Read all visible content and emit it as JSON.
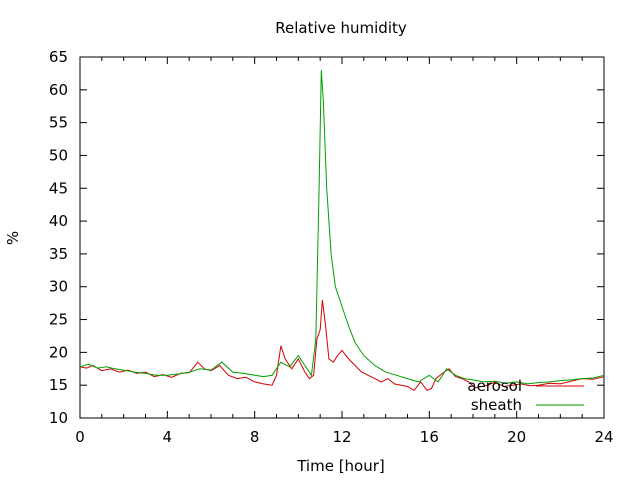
{
  "chart_data": {
    "type": "line",
    "title": "Relative humidity",
    "xlabel": "Time [hour]",
    "ylabel": "%",
    "xlim": [
      0,
      24
    ],
    "ylim": [
      10,
      65
    ],
    "xticks": [
      0,
      4,
      8,
      12,
      16,
      20,
      24
    ],
    "yticks": [
      10,
      15,
      20,
      25,
      30,
      35,
      40,
      45,
      50,
      55,
      60,
      65
    ],
    "grid": false,
    "legend_position": "bottom-right",
    "series": [
      {
        "name": "aerosol",
        "color": "#d40000",
        "x": [
          0,
          0.3,
          0.6,
          1.0,
          1.4,
          1.8,
          2.2,
          2.6,
          3.0,
          3.4,
          3.8,
          4.2,
          4.6,
          5.0,
          5.4,
          5.7,
          6.0,
          6.4,
          6.8,
          7.2,
          7.6,
          8.0,
          8.4,
          8.8,
          9.0,
          9.2,
          9.4,
          9.7,
          10.0,
          10.3,
          10.5,
          10.7,
          10.85,
          11.0,
          11.1,
          11.25,
          11.4,
          11.6,
          11.8,
          12.0,
          12.3,
          12.6,
          12.9,
          13.2,
          13.5,
          13.8,
          14.1,
          14.4,
          14.7,
          15.0,
          15.3,
          15.6,
          15.9,
          16.1,
          16.3,
          16.6,
          16.9,
          17.2,
          17.5,
          17.8,
          18.1,
          18.4,
          18.7,
          19.0,
          19.4,
          19.8,
          20.2,
          20.6,
          21.0,
          21.5,
          22.0,
          22.5,
          23.0,
          23.5,
          24.0
        ],
        "y": [
          17.8,
          17.6,
          18.0,
          17.2,
          17.5,
          17.0,
          17.3,
          16.8,
          17.0,
          16.3,
          16.6,
          16.2,
          16.8,
          16.9,
          18.5,
          17.5,
          17.2,
          18.0,
          16.5,
          16.0,
          16.2,
          15.5,
          15.2,
          15.0,
          16.5,
          21.0,
          19.0,
          17.5,
          19.0,
          17.0,
          16.0,
          16.5,
          22.0,
          23.5,
          28.0,
          24.0,
          19.0,
          18.5,
          19.5,
          20.3,
          19.0,
          18.0,
          17.0,
          16.5,
          16.0,
          15.5,
          16.0,
          15.2,
          15.0,
          14.8,
          14.2,
          15.5,
          14.2,
          14.5,
          16.0,
          16.8,
          17.5,
          16.3,
          16.0,
          15.5,
          14.6,
          14.8,
          15.0,
          15.5,
          14.8,
          15.0,
          15.2,
          14.9,
          15.0,
          15.3,
          15.2,
          15.6,
          16.0,
          15.9,
          16.3
        ]
      },
      {
        "name": "sheath",
        "color": "#00a000",
        "x": [
          0,
          0.4,
          0.8,
          1.2,
          1.6,
          2.0,
          2.5,
          3.0,
          3.5,
          4.0,
          4.5,
          5.0,
          5.5,
          6.0,
          6.5,
          7.0,
          7.5,
          8.0,
          8.4,
          8.8,
          9.2,
          9.6,
          10.0,
          10.3,
          10.6,
          10.8,
          10.95,
          11.05,
          11.15,
          11.3,
          11.5,
          11.7,
          12.0,
          12.3,
          12.6,
          13.0,
          13.5,
          14.0,
          14.5,
          15.0,
          15.5,
          16.0,
          16.4,
          16.8,
          17.2,
          17.6,
          18.0,
          18.5,
          19.0,
          19.5,
          20.0,
          20.5,
          21.0,
          21.5,
          22.0,
          22.5,
          23.0,
          23.5,
          24.0
        ],
        "y": [
          17.8,
          18.2,
          17.6,
          17.8,
          17.5,
          17.3,
          17.0,
          16.8,
          16.5,
          16.5,
          16.7,
          17.0,
          17.5,
          17.3,
          18.5,
          17.0,
          16.8,
          16.5,
          16.3,
          16.5,
          18.5,
          17.8,
          19.5,
          18.0,
          16.5,
          22.0,
          45.0,
          63.0,
          58.0,
          45.0,
          35.0,
          30.0,
          27.0,
          24.0,
          21.5,
          19.5,
          18.0,
          17.0,
          16.5,
          16.0,
          15.5,
          16.5,
          15.5,
          17.5,
          16.5,
          16.0,
          15.8,
          15.5,
          15.6,
          15.3,
          15.5,
          15.2,
          15.4,
          15.5,
          15.7,
          15.8,
          16.0,
          16.1,
          16.5
        ]
      }
    ]
  }
}
